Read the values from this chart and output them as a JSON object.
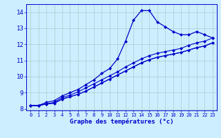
{
  "xlabel": "Graphe des températures (°c)",
  "bg_color": "#cceeff",
  "line_color": "#0000cc",
  "grid_color": "#aacccc",
  "xlim": [
    -0.5,
    23.5
  ],
  "ylim": [
    7.9,
    14.5
  ],
  "yticks": [
    8,
    9,
    10,
    11,
    12,
    13,
    14
  ],
  "xticks": [
    0,
    1,
    2,
    3,
    4,
    5,
    6,
    7,
    8,
    9,
    10,
    11,
    12,
    13,
    14,
    15,
    16,
    17,
    18,
    19,
    20,
    21,
    22,
    23
  ],
  "series1_x": [
    0,
    1,
    2,
    3,
    4,
    5,
    6,
    7,
    8,
    9,
    10,
    11,
    12,
    13,
    14,
    15,
    16,
    17,
    18,
    19,
    20,
    21,
    22,
    23
  ],
  "series1_y": [
    8.2,
    8.2,
    8.4,
    8.5,
    8.8,
    9.0,
    9.2,
    9.5,
    9.8,
    10.2,
    10.5,
    11.1,
    12.2,
    13.5,
    14.1,
    14.1,
    13.4,
    13.1,
    12.8,
    12.6,
    12.6,
    12.8,
    12.6,
    12.4
  ],
  "series2_x": [
    0,
    1,
    2,
    3,
    4,
    5,
    6,
    7,
    8,
    9,
    10,
    11,
    12,
    13,
    14,
    15,
    16,
    17,
    18,
    19,
    20,
    21,
    22,
    23
  ],
  "series2_y": [
    8.2,
    8.2,
    8.3,
    8.4,
    8.7,
    8.85,
    9.05,
    9.3,
    9.55,
    9.8,
    10.05,
    10.3,
    10.6,
    10.85,
    11.1,
    11.3,
    11.45,
    11.55,
    11.65,
    11.75,
    11.95,
    12.1,
    12.2,
    12.4
  ],
  "series3_x": [
    0,
    1,
    2,
    3,
    4,
    5,
    6,
    7,
    8,
    9,
    10,
    11,
    12,
    13,
    14,
    15,
    16,
    17,
    18,
    19,
    20,
    21,
    22,
    23
  ],
  "series3_y": [
    8.2,
    8.2,
    8.3,
    8.35,
    8.6,
    8.75,
    8.9,
    9.1,
    9.35,
    9.6,
    9.85,
    10.1,
    10.35,
    10.6,
    10.85,
    11.05,
    11.2,
    11.3,
    11.4,
    11.5,
    11.65,
    11.8,
    11.9,
    12.1
  ],
  "series4_x": [
    0,
    1,
    2,
    3,
    4,
    5,
    6,
    7,
    8,
    9,
    10,
    11,
    12,
    13,
    14,
    15,
    16,
    17,
    18,
    19,
    20,
    21,
    22,
    23
  ],
  "series4_y": [
    8.2,
    8.2,
    8.3,
    8.35,
    8.6,
    8.75,
    8.9,
    9.1,
    9.35,
    9.6,
    9.85,
    10.1,
    10.35,
    10.6,
    10.85,
    11.05,
    11.2,
    11.3,
    11.4,
    11.5,
    11.65,
    11.8,
    11.9,
    12.1
  ]
}
